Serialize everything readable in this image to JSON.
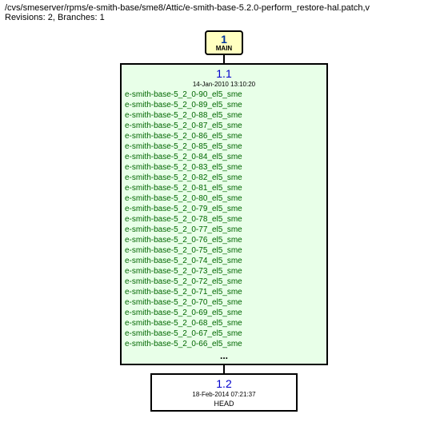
{
  "header": {
    "path": "/cvs/smeserver/rpms/e-smith-base/sme8/Attic/e-smith-base-5.2.0-perform_restore-hal.patch,v",
    "info": "Revisions: 2, Branches: 1"
  },
  "branch": {
    "num": "1",
    "label": "MAIN"
  },
  "rev_top": {
    "num": "1.1",
    "date": "14-Jan-2010 13:10:20",
    "tags": [
      "e-smith-base-5_2_0-90_el5_sme",
      "e-smith-base-5_2_0-89_el5_sme",
      "e-smith-base-5_2_0-88_el5_sme",
      "e-smith-base-5_2_0-87_el5_sme",
      "e-smith-base-5_2_0-86_el5_sme",
      "e-smith-base-5_2_0-85_el5_sme",
      "e-smith-base-5_2_0-84_el5_sme",
      "e-smith-base-5_2_0-83_el5_sme",
      "e-smith-base-5_2_0-82_el5_sme",
      "e-smith-base-5_2_0-81_el5_sme",
      "e-smith-base-5_2_0-80_el5_sme",
      "e-smith-base-5_2_0-79_el5_sme",
      "e-smith-base-5_2_0-78_el5_sme",
      "e-smith-base-5_2_0-77_el5_sme",
      "e-smith-base-5_2_0-76_el5_sme",
      "e-smith-base-5_2_0-75_el5_sme",
      "e-smith-base-5_2_0-74_el5_sme",
      "e-smith-base-5_2_0-73_el5_sme",
      "e-smith-base-5_2_0-72_el5_sme",
      "e-smith-base-5_2_0-71_el5_sme",
      "e-smith-base-5_2_0-70_el5_sme",
      "e-smith-base-5_2_0-69_el5_sme",
      "e-smith-base-5_2_0-68_el5_sme",
      "e-smith-base-5_2_0-67_el5_sme",
      "e-smith-base-5_2_0-66_el5_sme"
    ],
    "ellipsis": "..."
  },
  "rev_bottom": {
    "num": "1.2",
    "date": "18-Feb-2014 07:21:37",
    "head": "HEAD"
  },
  "colors": {
    "branch_bg": "#ffffc0",
    "rev_top_bg": "#e8ffe8",
    "rev_bottom_bg": "#ffffff",
    "link_color": "#0000cc",
    "tag_color": "#006600"
  }
}
